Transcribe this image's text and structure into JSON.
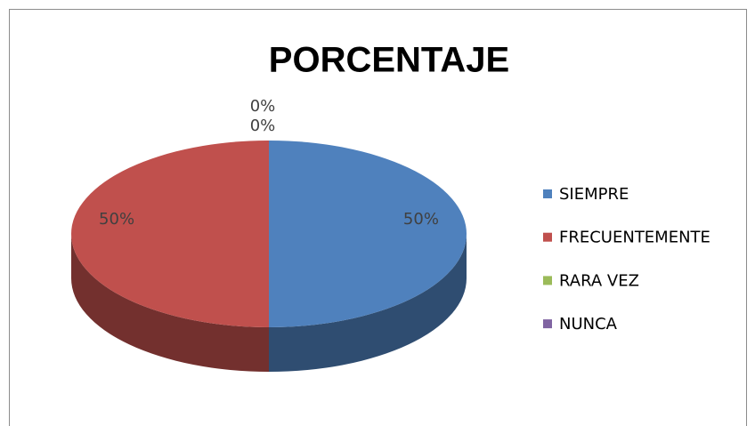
{
  "chart_data": {
    "type": "pie3d",
    "title": "PORCENTAJE",
    "categories": [
      "SIEMPRE",
      "FRECUENTEMENTE",
      "RARA VEZ",
      "NUNCA"
    ],
    "values": [
      50,
      50,
      0,
      0
    ],
    "value_labels": [
      "50%",
      "50%",
      "0%",
      "0%"
    ],
    "colors": [
      "#4f81bd",
      "#c0504d",
      "#9bbb59",
      "#8064a2"
    ],
    "legend": "right"
  }
}
